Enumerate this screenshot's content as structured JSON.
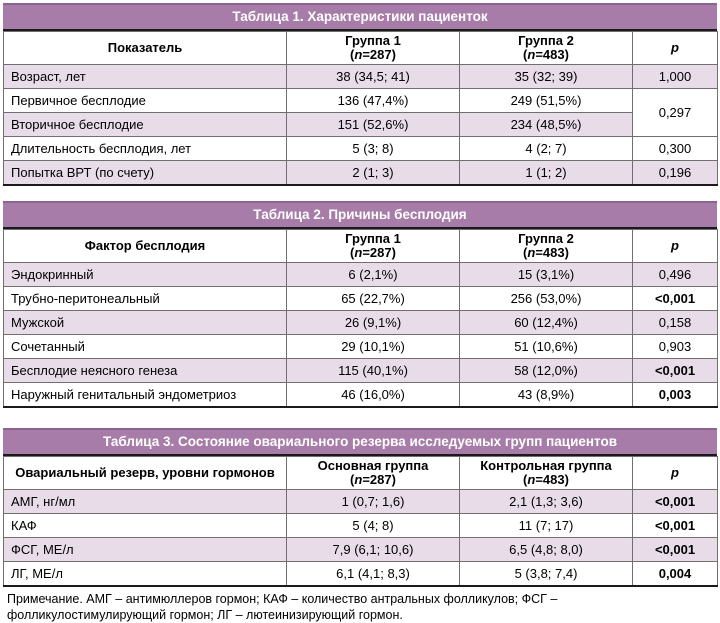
{
  "colors": {
    "title_bar_bg": "#a87ca8",
    "title_bar_text": "#ffffff",
    "row_shade": "#e9dce9",
    "heavy_rule": "#1a1a1a"
  },
  "tables": [
    {
      "title": "Таблица 1. Характеристики пациенток",
      "headers": {
        "c1": "Показатель",
        "c2": {
          "title": "Группа 1",
          "pre": "(",
          "n": "n",
          "post": "=287)"
        },
        "c3": {
          "title": "Группа 2",
          "pre": "(",
          "n": "n",
          "post": "=483)"
        },
        "p": "p"
      },
      "rows": [
        {
          "label": "Возраст, лет",
          "g1": "38 (34,5; 41)",
          "g2": "35 (32; 39)",
          "p": "1,000"
        },
        {
          "label": "Первичное бесплодие",
          "g1": "136 (47,4%)",
          "g2": "249 (51,5%)",
          "p": "0,297"
        },
        {
          "label": "Вторичное бесплодие",
          "g1": "151 (52,6%)",
          "g2": "234 (48,5%)"
        },
        {
          "label": "Длительность бесплодия, лет",
          "g1": "5 (3; 8)",
          "g2": "4 (2; 7)",
          "p": "0,300"
        },
        {
          "label": "Попытка ВРТ (по счету)",
          "g1": "2 (1; 3)",
          "g2": "1 (1; 2)",
          "p": "0,196"
        }
      ]
    },
    {
      "title": "Таблица 2. Причины бесплодия",
      "headers": {
        "c1": "Фактор бесплодия",
        "c2": {
          "title": "Группа 1",
          "pre": "(",
          "n": "n",
          "post": "=287)"
        },
        "c3": {
          "title": "Группа 2",
          "pre": "(",
          "n": "n",
          "post": "=483)"
        },
        "p": "p"
      },
      "rows": [
        {
          "label": "Эндокринный",
          "g1": "6 (2,1%)",
          "g2": "15 (3,1%)",
          "p": "0,496"
        },
        {
          "label": "Трубно-перитонеальный",
          "g1": "65 (22,7%)",
          "g2": "256 (53,0%)",
          "p": "<0,001"
        },
        {
          "label": "Мужской",
          "g1": "26 (9,1%)",
          "g2": "60 (12,4%)",
          "p": "0,158"
        },
        {
          "label": "Сочетанный",
          "g1": "29 (10,1%)",
          "g2": "51 (10,6%)",
          "p": "0,903"
        },
        {
          "label": "Бесплодие неясного генеза",
          "g1": "115 (40,1%)",
          "g2": "58 (12,0%)",
          "p": "<0,001"
        },
        {
          "label": "Наружный генитальный эндометриоз",
          "g1": "46 (16,0%)",
          "g2": "43 (8,9%)",
          "p": "0,003"
        }
      ]
    },
    {
      "title": "Таблица 3. Состояние овариального резерва исследуемых групп пациентов",
      "headers": {
        "c1": "Овариальный резерв, уровни гормонов",
        "c2": {
          "title": "Основная группа",
          "pre": "(",
          "n": "n",
          "post": "=287)"
        },
        "c3": {
          "title": "Контрольная группа",
          "pre": "(",
          "n": "n",
          "post": "=483)"
        },
        "p": "p"
      },
      "rows": [
        {
          "label": "АМГ, нг/мл",
          "g1": "1 (0,7; 1,6)",
          "g2": "2,1 (1,3; 3,6)",
          "p": "<0,001"
        },
        {
          "label": "КАФ",
          "g1": "5 (4; 8)",
          "g2": "11 (7; 17)",
          "p": "<0,001"
        },
        {
          "label": "ФСГ, МЕ/л",
          "g1": "7,9 (6,1; 10,6)",
          "g2": "6,5 (4,8; 8,0)",
          "p": "<0,001"
        },
        {
          "label": "ЛГ, МЕ/л",
          "g1": "6,1 (4,1; 8,3)",
          "g2": "5 (3,8; 7,4)",
          "p": "0,004"
        }
      ]
    }
  ],
  "footnote": "Примечание. АМГ – антимюллеров гормон; КАФ – количество антральных фолликулов; ФСГ – фолликулостимулирующий гормон; ЛГ – лютеинизирующий гормон."
}
